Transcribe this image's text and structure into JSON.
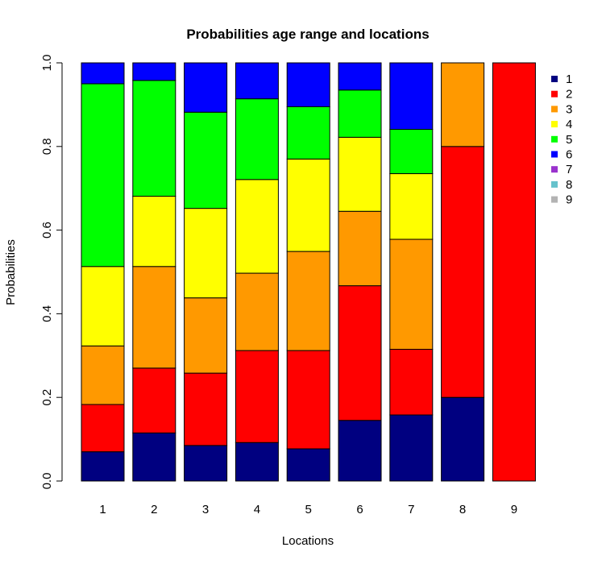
{
  "chart_data": {
    "type": "bar",
    "stacked": true,
    "title": "Probabilities age range and locations",
    "xlabel": "Locations",
    "ylabel": "Probabilities",
    "ylim": [
      0,
      1
    ],
    "yticks": [
      "0.0",
      "0.2",
      "0.4",
      "0.6",
      "0.8",
      "1.0"
    ],
    "categories": [
      "1",
      "2",
      "3",
      "4",
      "5",
      "6",
      "7",
      "8",
      "9"
    ],
    "legend_position": "right",
    "series": [
      {
        "name": "1",
        "color": "#000080",
        "values": [
          0.07,
          0.115,
          0.085,
          0.092,
          0.077,
          0.145,
          0.158,
          0.2,
          0.0
        ]
      },
      {
        "name": "2",
        "color": "#ff0000",
        "values": [
          0.113,
          0.155,
          0.173,
          0.22,
          0.235,
          0.322,
          0.157,
          0.6,
          1.0
        ]
      },
      {
        "name": "3",
        "color": "#ff9900",
        "values": [
          0.14,
          0.243,
          0.18,
          0.185,
          0.237,
          0.178,
          0.263,
          0.2,
          0.0
        ]
      },
      {
        "name": "4",
        "color": "#ffff00",
        "values": [
          0.19,
          0.168,
          0.214,
          0.224,
          0.221,
          0.177,
          0.157,
          0.0,
          0.0
        ]
      },
      {
        "name": "5",
        "color": "#00ff00",
        "values": [
          0.437,
          0.277,
          0.23,
          0.193,
          0.125,
          0.113,
          0.106,
          0.0,
          0.0
        ]
      },
      {
        "name": "6",
        "color": "#0000ff",
        "values": [
          0.05,
          0.042,
          0.118,
          0.086,
          0.105,
          0.065,
          0.159,
          0.0,
          0.0
        ]
      },
      {
        "name": "7",
        "color": "#9a32cd",
        "values": [
          0,
          0,
          0,
          0,
          0,
          0,
          0,
          0,
          0
        ]
      },
      {
        "name": "8",
        "color": "#66c2cc",
        "values": [
          0,
          0,
          0,
          0,
          0,
          0,
          0,
          0,
          0
        ]
      },
      {
        "name": "9",
        "color": "#b3b3b3",
        "values": [
          0,
          0,
          0,
          0,
          0,
          0,
          0,
          0,
          0
        ]
      }
    ]
  }
}
